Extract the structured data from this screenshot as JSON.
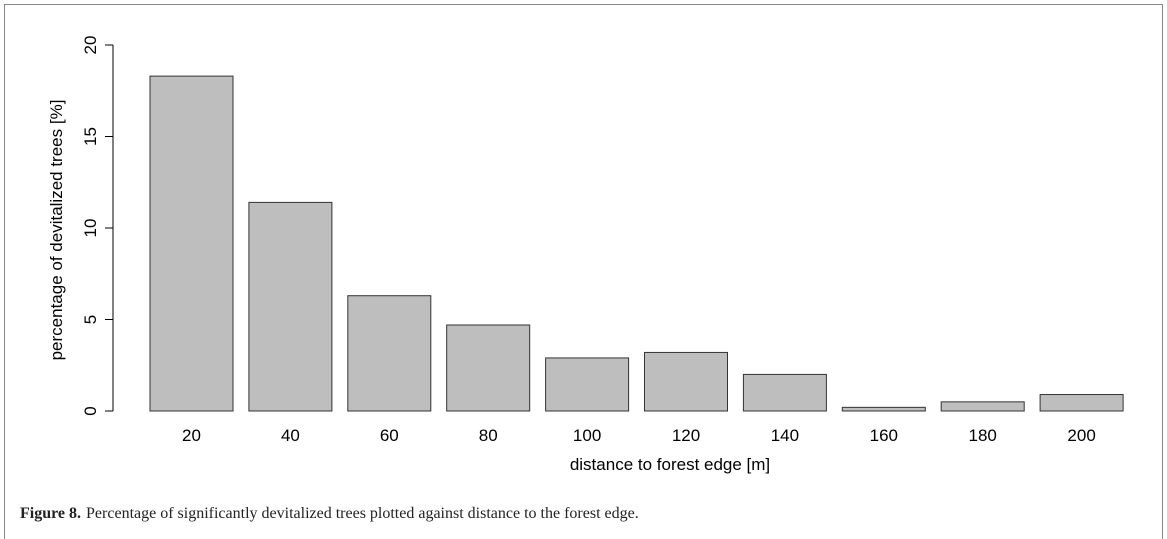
{
  "chart_data": {
    "type": "bar",
    "xlabel": "distance to forest edge [m]",
    "ylabel": "percentage of devitalized trees [%]",
    "categories": [
      "20",
      "40",
      "60",
      "80",
      "100",
      "120",
      "140",
      "160",
      "180",
      "200"
    ],
    "values": [
      18.3,
      11.4,
      6.3,
      4.7,
      2.9,
      3.2,
      2.0,
      0.2,
      0.5,
      0.9
    ],
    "color": "#bebebe",
    "ylim": [
      0,
      20
    ],
    "yticks": [
      0,
      5,
      10,
      15,
      20
    ],
    "grid": false
  },
  "caption": {
    "label": "Figure 8.",
    "text": "Percentage of significantly devitalized trees plotted against distance to the forest edge."
  }
}
